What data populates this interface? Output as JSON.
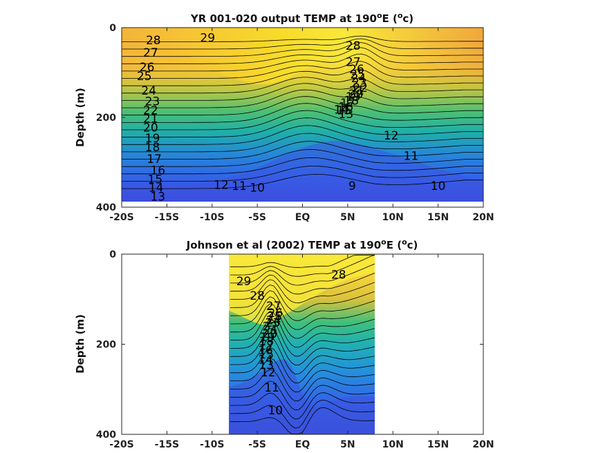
{
  "chart_data": [
    {
      "type": "contour",
      "title": "YR 001-020 output TEMP at 190",
      "title_sup": "o",
      "title_tail": "E (",
      "title_unit_sup": "o",
      "title_end": "c)",
      "ylabel": "Depth (m)",
      "xlim": [
        -20,
        20
      ],
      "ylim": [
        0,
        400
      ],
      "y_reversed": true,
      "xtick_values": [
        -20,
        -15,
        -10,
        -5,
        0,
        5,
        10,
        15,
        20
      ],
      "xticks": [
        "-20S",
        "-15S",
        "-10S",
        "-5S",
        "EQ",
        "5N",
        "10N",
        "15N",
        "20N"
      ],
      "yticks": [
        "0",
        "200",
        "400"
      ],
      "ytick_values": [
        0,
        200,
        400
      ],
      "data_extent": {
        "lat": [
          -20,
          20
        ],
        "depth": [
          0,
          385
        ]
      },
      "contour_levels": [
        9,
        10,
        11,
        12,
        13,
        14,
        15,
        16,
        17,
        18,
        19,
        20,
        21,
        22,
        23,
        24,
        25,
        26,
        27,
        28,
        29
      ],
      "contour_labels": [
        {
          "text": "29",
          "lat": -10.5,
          "depth": 22
        },
        {
          "text": "28",
          "lat": -16.5,
          "depth": 28
        },
        {
          "text": "27",
          "lat": -16.8,
          "depth": 55
        },
        {
          "text": "26",
          "lat": -17.2,
          "depth": 88
        },
        {
          "text": "25",
          "lat": -17.5,
          "depth": 108
        },
        {
          "text": "24",
          "lat": -17.0,
          "depth": 140
        },
        {
          "text": "23",
          "lat": -16.6,
          "depth": 164
        },
        {
          "text": "22",
          "lat": -16.8,
          "depth": 184
        },
        {
          "text": "21",
          "lat": -16.8,
          "depth": 202
        },
        {
          "text": "20",
          "lat": -16.8,
          "depth": 222
        },
        {
          "text": "19",
          "lat": -16.6,
          "depth": 246
        },
        {
          "text": "18",
          "lat": -16.6,
          "depth": 266
        },
        {
          "text": "17",
          "lat": -16.4,
          "depth": 292
        },
        {
          "text": "16",
          "lat": -16.0,
          "depth": 318
        },
        {
          "text": "15",
          "lat": -16.3,
          "depth": 338
        },
        {
          "text": "14",
          "lat": -16.2,
          "depth": 356
        },
        {
          "text": "13",
          "lat": -16.0,
          "depth": 376
        },
        {
          "text": "12",
          "lat": -9.0,
          "depth": 350
        },
        {
          "text": "11",
          "lat": -7.0,
          "depth": 352
        },
        {
          "text": "10",
          "lat": -5.0,
          "depth": 356
        },
        {
          "text": "9",
          "lat": 5.5,
          "depth": 352
        },
        {
          "text": "28",
          "lat": 5.6,
          "depth": 40
        },
        {
          "text": "27",
          "lat": 5.6,
          "depth": 76
        },
        {
          "text": "26",
          "lat": 6.0,
          "depth": 92
        },
        {
          "text": "25",
          "lat": 6.1,
          "depth": 104
        },
        {
          "text": "24",
          "lat": 6.2,
          "depth": 112
        },
        {
          "text": "23",
          "lat": 6.3,
          "depth": 122
        },
        {
          "text": "22",
          "lat": 6.4,
          "depth": 134
        },
        {
          "text": "21",
          "lat": 6.0,
          "depth": 140
        },
        {
          "text": "20",
          "lat": 5.9,
          "depth": 148
        },
        {
          "text": "19",
          "lat": 5.6,
          "depth": 154
        },
        {
          "text": "18",
          "lat": 5.4,
          "depth": 162
        },
        {
          "text": "17",
          "lat": 5.0,
          "depth": 168
        },
        {
          "text": "16",
          "lat": 4.8,
          "depth": 176
        },
        {
          "text": "15",
          "lat": 4.6,
          "depth": 184
        },
        {
          "text": "14",
          "lat": 4.3,
          "depth": 182
        },
        {
          "text": "13",
          "lat": 4.8,
          "depth": 192
        },
        {
          "text": "12",
          "lat": 9.8,
          "depth": 240
        },
        {
          "text": "11",
          "lat": 12.0,
          "depth": 285
        },
        {
          "text": "10",
          "lat": 15.0,
          "depth": 352
        }
      ]
    },
    {
      "type": "contour",
      "title": "Johnson et al (2002) TEMP at 190",
      "title_sup": "o",
      "title_tail": "E (",
      "title_unit_sup": "o",
      "title_end": "c)",
      "ylabel": "Depth (m)",
      "xlim": [
        -20,
        20
      ],
      "ylim": [
        0,
        400
      ],
      "y_reversed": true,
      "xtick_values": [
        -20,
        -15,
        -10,
        -5,
        0,
        5,
        10,
        15,
        20
      ],
      "xticks": [
        "-20S",
        "-15S",
        "-10S",
        "-5S",
        "EQ",
        "5N",
        "10N",
        "15N",
        "20N"
      ],
      "yticks": [
        "0",
        "200",
        "400"
      ],
      "ytick_values": [
        0,
        200,
        400
      ],
      "data_extent": {
        "lat": [
          -8,
          8
        ],
        "depth": [
          0,
          400
        ]
      },
      "contour_levels": [
        10,
        11,
        12,
        13,
        14,
        15,
        16,
        17,
        18,
        19,
        20,
        21,
        22,
        23,
        24,
        25,
        26,
        27,
        28,
        29
      ],
      "contour_labels": [
        {
          "text": "29",
          "lat": -6.5,
          "depth": 60
        },
        {
          "text": "28",
          "lat": -5.0,
          "depth": 92
        },
        {
          "text": "28",
          "lat": 4.0,
          "depth": 45
        },
        {
          "text": "27",
          "lat": -3.2,
          "depth": 115
        },
        {
          "text": "26",
          "lat": -3.0,
          "depth": 130
        },
        {
          "text": "25",
          "lat": -3.1,
          "depth": 138
        },
        {
          "text": "24",
          "lat": -3.2,
          "depth": 146
        },
        {
          "text": "23",
          "lat": -3.3,
          "depth": 152
        },
        {
          "text": "22",
          "lat": -3.6,
          "depth": 160
        },
        {
          "text": "21",
          "lat": -3.5,
          "depth": 168
        },
        {
          "text": "20",
          "lat": -3.6,
          "depth": 176
        },
        {
          "text": "19",
          "lat": -3.9,
          "depth": 184
        },
        {
          "text": "18",
          "lat": -4.0,
          "depth": 193
        },
        {
          "text": "17",
          "lat": -4.0,
          "depth": 203
        },
        {
          "text": "16",
          "lat": -4.1,
          "depth": 213
        },
        {
          "text": "15",
          "lat": -4.0,
          "depth": 222
        },
        {
          "text": "14",
          "lat": -4.1,
          "depth": 234
        },
        {
          "text": "13",
          "lat": -4.0,
          "depth": 246
        },
        {
          "text": "12",
          "lat": -3.8,
          "depth": 262
        },
        {
          "text": "11",
          "lat": -3.4,
          "depth": 296
        },
        {
          "text": "10",
          "lat": -3.0,
          "depth": 346
        }
      ]
    }
  ]
}
